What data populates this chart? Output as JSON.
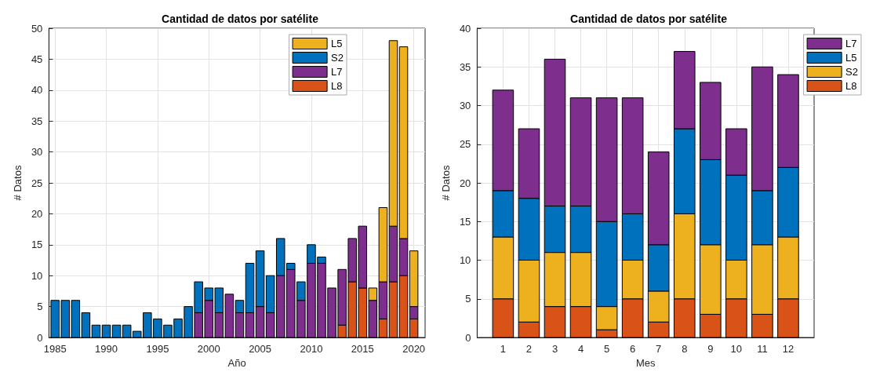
{
  "chart_data": [
    {
      "type": "bar",
      "title": "Cantidad de datos por satélite",
      "xlabel": "Año",
      "ylabel": "# Datos",
      "stacked": true,
      "grid": true,
      "legend": "top right",
      "x": [
        1985,
        1986,
        1987,
        1988,
        1989,
        1990,
        1991,
        1992,
        1993,
        1994,
        1995,
        1996,
        1997,
        1998,
        1999,
        2000,
        2001,
        2002,
        2003,
        2004,
        2005,
        2006,
        2007,
        2008,
        2009,
        2010,
        2011,
        2012,
        2013,
        2014,
        2015,
        2016,
        2017,
        2018,
        2019,
        2020
      ],
      "xlim": [
        1984.4,
        2021.1
      ],
      "xticks": [
        1985,
        1990,
        1995,
        2000,
        2005,
        2010,
        2015,
        2020
      ],
      "ylim": [
        0,
        50
      ],
      "yticks": [
        0,
        5,
        10,
        15,
        20,
        25,
        30,
        35,
        40,
        45,
        50
      ],
      "series": [
        {
          "name": "L8",
          "color": "#d95319",
          "values": [
            null,
            null,
            null,
            null,
            null,
            null,
            null,
            null,
            null,
            null,
            null,
            null,
            null,
            null,
            null,
            null,
            null,
            null,
            null,
            null,
            null,
            null,
            null,
            null,
            null,
            null,
            null,
            null,
            2,
            9,
            8,
            null,
            3,
            9,
            10,
            3
          ]
        },
        {
          "name": "L7",
          "color": "#7e2f8e",
          "values": [
            null,
            null,
            null,
            null,
            null,
            null,
            null,
            null,
            null,
            null,
            null,
            null,
            null,
            null,
            4,
            6,
            4,
            7,
            4,
            4,
            5,
            4,
            10,
            11,
            6,
            12,
            12,
            8,
            9,
            7,
            10,
            6,
            6,
            9,
            6,
            2
          ]
        },
        {
          "name": "S2",
          "color": "#0072bd",
          "values": [
            6,
            6,
            6,
            4,
            2,
            2,
            2,
            2,
            1,
            4,
            3,
            2,
            3,
            5,
            5,
            2,
            4,
            null,
            2,
            8,
            9,
            6,
            6,
            1,
            3,
            3,
            1,
            null,
            null,
            null,
            null,
            null,
            null,
            null,
            null,
            null
          ]
        },
        {
          "name": "L5",
          "color": "#edb120",
          "values": [
            null,
            null,
            null,
            null,
            null,
            null,
            null,
            null,
            null,
            null,
            null,
            null,
            null,
            null,
            null,
            null,
            null,
            null,
            null,
            null,
            null,
            null,
            null,
            null,
            null,
            null,
            null,
            null,
            null,
            null,
            null,
            2,
            12,
            30,
            31,
            9
          ]
        }
      ]
    },
    {
      "type": "bar",
      "title": "Cantidad de datos por satélite",
      "xlabel": "Mes",
      "ylabel": "# Datos",
      "stacked": true,
      "grid": true,
      "legend": "right",
      "x": [
        1,
        2,
        3,
        4,
        5,
        6,
        7,
        8,
        9,
        10,
        11,
        12
      ],
      "xlim": [
        0,
        13
      ],
      "xticks": [
        1,
        2,
        3,
        4,
        5,
        6,
        7,
        8,
        9,
        10,
        11,
        12
      ],
      "ylim": [
        0,
        40
      ],
      "yticks": [
        0,
        5,
        10,
        15,
        20,
        25,
        30,
        35,
        40
      ],
      "series": [
        {
          "name": "L8",
          "color": "#d95319",
          "values": [
            5,
            2,
            4,
            4,
            1,
            5,
            2,
            5,
            3,
            5,
            3,
            5
          ]
        },
        {
          "name": "S2",
          "color": "#edb120",
          "values": [
            8,
            8,
            7,
            7,
            3,
            5,
            4,
            11,
            9,
            5,
            9,
            8
          ]
        },
        {
          "name": "L5",
          "color": "#0072bd",
          "values": [
            6,
            8,
            6,
            6,
            11,
            6,
            6,
            11,
            11,
            11,
            7,
            9
          ]
        },
        {
          "name": "L7",
          "color": "#7e2f8e",
          "values": [
            13,
            9,
            19,
            14,
            16,
            15,
            12,
            10,
            10,
            6,
            16,
            12
          ]
        }
      ]
    }
  ]
}
